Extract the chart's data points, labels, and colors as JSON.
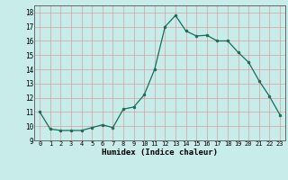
{
  "x": [
    0,
    1,
    2,
    3,
    4,
    5,
    6,
    7,
    8,
    9,
    10,
    11,
    12,
    13,
    14,
    15,
    16,
    17,
    18,
    19,
    20,
    21,
    22,
    23
  ],
  "y": [
    11.0,
    9.8,
    9.7,
    9.7,
    9.7,
    9.9,
    10.1,
    9.9,
    11.2,
    11.35,
    12.2,
    14.0,
    17.0,
    17.8,
    16.7,
    16.35,
    16.4,
    16.0,
    16.0,
    15.2,
    14.5,
    13.2,
    12.1,
    10.8
  ],
  "line_color": "#1a6b5a",
  "marker_color": "#1a6b5a",
  "bg_color": "#c8ecea",
  "grid_color": "#d4a0a0",
  "xlabel": "Humidex (Indice chaleur)",
  "ylim": [
    9,
    18.5
  ],
  "xlim": [
    -0.5,
    23.5
  ],
  "yticks": [
    9,
    10,
    11,
    12,
    13,
    14,
    15,
    16,
    17,
    18
  ],
  "xticks": [
    0,
    1,
    2,
    3,
    4,
    5,
    6,
    7,
    8,
    9,
    10,
    11,
    12,
    13,
    14,
    15,
    16,
    17,
    18,
    19,
    20,
    21,
    22,
    23
  ]
}
